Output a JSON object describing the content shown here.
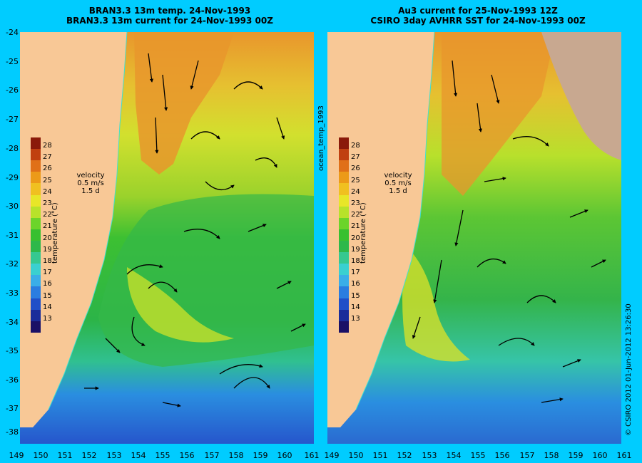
{
  "left_panel": {
    "title_line1": "BRAN3.3 13m temp. 24-Nov-1993",
    "title_line2": "BRAN3.3 13m current for 24-Nov-1993 00Z"
  },
  "right_panel": {
    "title_line1": "Au3 current for 25-Nov-1993 12Z",
    "title_line2": "CSIRO 3day AVHRR SST for 24-Nov-1993 00Z"
  },
  "lat_labels": [
    "-24",
    "-25",
    "-26",
    "-27",
    "-28",
    "-29",
    "-30",
    "-31",
    "-32",
    "-33",
    "-34",
    "-35",
    "-36",
    "-37",
    "-38"
  ],
  "lon_labels": [
    "149",
    "150",
    "151",
    "152",
    "153",
    "154",
    "155",
    "156",
    "157",
    "158",
    "159",
    "160",
    "161"
  ],
  "colorbar": {
    "ticks": [
      "28",
      "27",
      "26",
      "25",
      "24",
      "23",
      "22",
      "21",
      "20",
      "19",
      "18",
      "17",
      "16",
      "15",
      "14",
      "13"
    ],
    "label": "temperature (°C)",
    "colors": [
      "#1a1066",
      "#1a2c9a",
      "#1f4fc8",
      "#2a7de0",
      "#3aaee8",
      "#3ad0d0",
      "#36c890",
      "#2eb84a",
      "#38c030",
      "#6cd42a",
      "#b8e22a",
      "#e8e628",
      "#f0c020",
      "#ec9a18",
      "#e07018",
      "#c04010",
      "#8a1a0a"
    ]
  },
  "velocity_legend": {
    "title": "velocity",
    "speed": "0.5 m/s",
    "duration": "1.5 d"
  },
  "side_label": "ocean_temp_1993",
  "copyright": "© CSIRO 2012   01-Jun-2012 13:26:30",
  "colors": {
    "background": "#00ccff",
    "land": "#f8c896",
    "warm_water": "#e89a30",
    "mid_water": "#cbe030",
    "cool_water": "#34b848",
    "cold_water": "#1e6ee0"
  }
}
